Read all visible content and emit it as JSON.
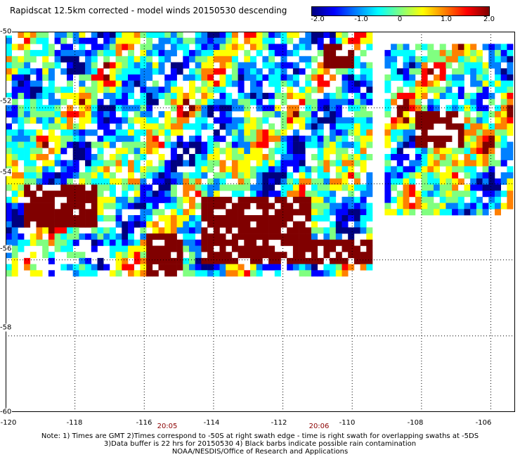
{
  "title": "Rapidscat 12.5km corrected - model winds 20150530 descending",
  "colorbar": {
    "tick_labels": [
      "-2.0",
      "-1.0",
      "0",
      "1.0",
      "2.0"
    ],
    "colors": [
      "#000080",
      "#0000ff",
      "#0080ff",
      "#00ffff",
      "#80ff80",
      "#ffff00",
      "#ff8000",
      "#ff0000",
      "#800000"
    ]
  },
  "axes": {
    "lon_labels": [
      "-120",
      "-118",
      "-116",
      "-114",
      "-112",
      "-110",
      "-108",
      "-106"
    ],
    "lat_labels": [
      "-50",
      "-52",
      "-54",
      "-56",
      "-58",
      "-60"
    ],
    "time_labels": [
      "20:05",
      "20:06"
    ]
  },
  "notes": [
    "Note: 1) Times are GMT 2)Times correspond to -50S at right swath edge - time is right swath for overlapping swaths at -5DS",
    "3)Data buffer is 22 hrs for 20150530 4) Black barbs indicate possible rain contamination",
    "NOAA/NESDIS/Office of Research and Applications"
  ],
  "chart_data": {
    "type": "heatmap",
    "title": "Rapidscat 12.5km corrected - model winds 20150530 descending",
    "x_axis": "longitude",
    "y_axis": "latitude",
    "xlim": [
      -120,
      -105.3
    ],
    "ylim": [
      -60,
      -50
    ],
    "color_range": [
      -2.0,
      2.0
    ],
    "regions": [
      {
        "lon": [
          -120,
          -109.5
        ],
        "lat": [
          -56.3,
          -50
        ],
        "value_note": "swath mostly blue to yellow"
      },
      {
        "lon": [
          -119.5,
          -117.5
        ],
        "lat": [
          -55,
          -54
        ],
        "value": 2.0
      },
      {
        "lon": [
          -114.5,
          -111.2
        ],
        "lat": [
          -56,
          -54.3
        ],
        "value": 2.0
      },
      {
        "lon": [
          -116,
          -115
        ],
        "lat": [
          -56.3,
          -55.2
        ],
        "value": 2.0
      },
      {
        "lon": [
          -111.5,
          -109.2
        ],
        "lat": [
          -56.1,
          -55.4
        ],
        "value": 2.0
      },
      {
        "lon": [
          -108.3,
          -106.8
        ],
        "lat": [
          -52.9,
          -52.0
        ],
        "value": 2.0
      },
      {
        "lon": [
          -111,
          -110
        ],
        "lat": [
          -50.9,
          -50.3
        ],
        "value": 2.0
      }
    ]
  }
}
